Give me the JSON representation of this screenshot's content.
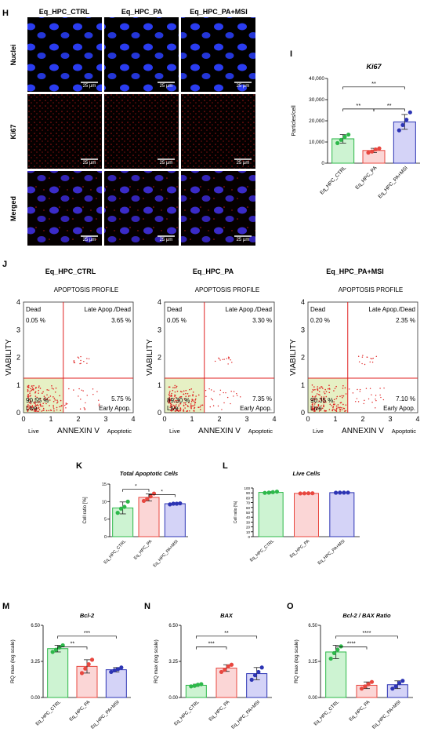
{
  "panel_letters": {
    "H": "H",
    "I": "I",
    "J": "J",
    "K": "K",
    "L": "L",
    "M": "M",
    "N": "N",
    "O": "O"
  },
  "micro": {
    "columns": [
      "Eq_HPC_CTRL",
      "Eq_HPC_PA",
      "Eq_HPC_PA+MSI"
    ],
    "rows": [
      "Nuclei",
      "Ki67",
      "Merged"
    ],
    "scalebar": "25 µm"
  },
  "flow": {
    "groups": [
      {
        "title": "Eq_HPC_CTRL",
        "dead": "0.05 %",
        "late": "3.65 %",
        "live": "90.55 %",
        "early": "5.75 %"
      },
      {
        "title": "Eq_HPC_PA",
        "dead": "0.05 %",
        "late": "3.30 %",
        "live": "89.30 %",
        "early": "7.35 %"
      },
      {
        "title": "Eq_HPC_PA+MSI",
        "dead": "0.20 %",
        "late": "2.35 %",
        "live": "90.35 %",
        "early": "7.10 %"
      }
    ],
    "profile": "APOPTOSIS PROFILE",
    "q_dead": "Dead",
    "q_late": "Late Apop./Dead",
    "q_live": "Live",
    "q_early": "Early Apop.",
    "ylabel": "VIABILITY",
    "xlabel": "ANNEXIN V",
    "x_live": "Live",
    "x_apop": "Apoptotic",
    "xticks": [
      "0",
      "1",
      "2",
      "3",
      "4"
    ],
    "yticks": [
      "0",
      "1",
      "2",
      "3",
      "4"
    ]
  },
  "colors": {
    "ctrl": "#2db84a",
    "pa": "#e8473f",
    "msi": "#2c34b4",
    "ctrl_fill": "#cdf3d2",
    "pa_fill": "#fbd6d6",
    "msi_fill": "#d4d3f7"
  },
  "chart_data": [
    {
      "panel": "I",
      "type": "bar",
      "title": "Ki67",
      "ylabel": "Particles/cell",
      "ylim": [
        0,
        40000
      ],
      "yticks": [
        "0",
        "10,000",
        "20,000",
        "30,000",
        "40,000"
      ],
      "categories": [
        "Eq_HPC_CTRL",
        "Eq_HPC_PA",
        "Eq_HPC_PA+MSI"
      ],
      "values": [
        11500,
        6000,
        19500
      ],
      "errors": [
        2000,
        1000,
        3500
      ],
      "points": [
        [
          9500,
          11000,
          12500,
          13500
        ],
        [
          5000,
          5500,
          6500,
          7000
        ],
        [
          15500,
          18000,
          20500,
          24000
        ]
      ],
      "sig": [
        {
          "a": 0,
          "b": 2,
          "label": "**",
          "level": 0.9
        },
        {
          "a": 0,
          "b": 1,
          "label": "**",
          "level": 0.64
        },
        {
          "a": 1,
          "b": 2,
          "label": "**",
          "level": 0.64
        }
      ]
    },
    {
      "panel": "K",
      "type": "bar",
      "title": "Total Apoptotic Cells",
      "ylabel": "Cell ratio [%]",
      "ylim": [
        0,
        15
      ],
      "yticks": [
        "0",
        "5",
        "10",
        "15"
      ],
      "categories": [
        "Eq_HPC_CTRL",
        "Eq_HPC_PA",
        "Eq_HPC_PA+MSI"
      ],
      "values": [
        8.2,
        11.2,
        9.4
      ],
      "errors": [
        1.7,
        1.0,
        0.2
      ],
      "points": [
        [
          6.8,
          8.0,
          8.5,
          10.0
        ],
        [
          10.2,
          10.8,
          11.5,
          12.3
        ],
        [
          9.2,
          9.4,
          9.4,
          9.5
        ]
      ],
      "sig": [
        {
          "a": 0,
          "b": 1,
          "label": "*",
          "level": 0.9
        },
        {
          "a": 1,
          "b": 2,
          "label": "*",
          "level": 0.8
        }
      ]
    },
    {
      "panel": "L",
      "type": "bar",
      "title": "Live Cells",
      "ylabel": "Cell ratio [%]",
      "ylim": [
        0,
        100
      ],
      "yticks": [
        "0",
        "10",
        "20",
        "30",
        "40",
        "50",
        "60",
        "70",
        "80",
        "90",
        "100"
      ],
      "categories": [
        "Eq_HPC_CTRL",
        "Eq_HPC_PA",
        "Eq_HPC_PA+MSI"
      ],
      "values": [
        91,
        89,
        90.5
      ],
      "errors": [
        1.5,
        0.4,
        0.2
      ],
      "points": [
        [
          90,
          90.5,
          91.5,
          92.5
        ],
        [
          88.8,
          89,
          89.2,
          89.2
        ],
        [
          90.3,
          90.5,
          90.5,
          90.6
        ]
      ],
      "sig": []
    },
    {
      "panel": "M",
      "type": "bar",
      "title": "Bcl-2",
      "ylabel": "RQ max (log scale)",
      "ylim": [
        0,
        6.5
      ],
      "yticks": [
        "0.00",
        "3.25",
        "6.50"
      ],
      "categories": [
        "Eq_HPC_CTRL",
        "Eq_HPC_PA",
        "Eq_HPC_PA+MSI"
      ],
      "values": [
        4.4,
        2.8,
        2.5
      ],
      "errors": [
        0.3,
        0.6,
        0.2
      ],
      "points": [
        [
          4.1,
          4.3,
          4.5,
          4.7
        ],
        [
          2.2,
          2.6,
          3.0,
          3.4
        ],
        [
          2.3,
          2.45,
          2.55,
          2.7
        ]
      ],
      "sig": [
        {
          "a": 0,
          "b": 2,
          "label": "***",
          "level": 0.85
        },
        {
          "a": 0,
          "b": 1,
          "label": "**",
          "level": 0.7
        }
      ]
    },
    {
      "panel": "N",
      "type": "bar",
      "title": "BAX",
      "ylabel": "RQ max (log scale)",
      "ylim": [
        0,
        6.5
      ],
      "yticks": [
        "0.00",
        "3.25",
        "6.50"
      ],
      "categories": [
        "Eq_HPC_CTRL",
        "Eq_HPC_PA",
        "Eq_HPC_PA+MSI"
      ],
      "values": [
        1.1,
        2.65,
        2.15
      ],
      "errors": [
        0.1,
        0.3,
        0.55
      ],
      "points": [
        [
          1.0,
          1.05,
          1.15,
          1.2
        ],
        [
          2.3,
          2.5,
          2.8,
          2.95
        ],
        [
          1.6,
          2.0,
          2.3,
          2.7
        ]
      ],
      "sig": [
        {
          "a": 0,
          "b": 2,
          "label": "**",
          "level": 0.85
        },
        {
          "a": 0,
          "b": 1,
          "label": "***",
          "level": 0.7
        }
      ]
    },
    {
      "panel": "O",
      "type": "bar",
      "title": "Bcl-2 / BAX Ratio",
      "ylabel": "RQ max (log scale)",
      "ylim": [
        0,
        6.5
      ],
      "yticks": [
        "0.00",
        "3.25",
        "6.50"
      ],
      "categories": [
        "Eq_HPC_CTRL",
        "Eq_HPC_PA",
        "Eq_HPC_PA+MSI"
      ],
      "values": [
        4.1,
        1.1,
        1.15
      ],
      "errors": [
        0.6,
        0.3,
        0.35
      ],
      "points": [
        [
          3.5,
          4.0,
          4.3,
          4.6
        ],
        [
          0.8,
          1.0,
          1.2,
          1.4
        ],
        [
          0.8,
          1.0,
          1.3,
          1.5
        ]
      ],
      "sig": [
        {
          "a": 0,
          "b": 2,
          "label": "****",
          "level": 0.85
        },
        {
          "a": 0,
          "b": 1,
          "label": "****",
          "level": 0.7
        }
      ]
    }
  ]
}
